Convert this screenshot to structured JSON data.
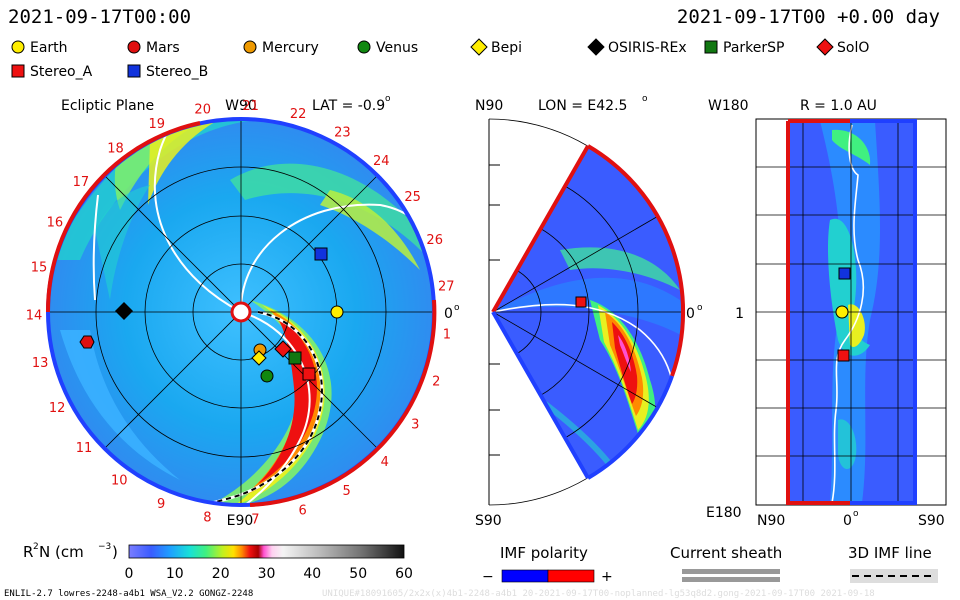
{
  "header": {
    "left_timestamp": "2021-09-17T00:00",
    "right_timestamp": "2021-09-17T00 +0.00 day"
  },
  "legend": [
    {
      "label": "Earth",
      "marker": "circle",
      "color": "#ffee00"
    },
    {
      "label": "Mars",
      "marker": "circle",
      "color": "#e01010"
    },
    {
      "label": "Mercury",
      "marker": "circle",
      "color": "#ee9900"
    },
    {
      "label": "Venus",
      "marker": "circle",
      "color": "#118811"
    },
    {
      "label": "Bepi",
      "marker": "diamond",
      "color": "#ffee00"
    },
    {
      "label": "OSIRIS-REx",
      "marker": "diamond",
      "color": "#000000"
    },
    {
      "label": "ParkerSP",
      "marker": "square",
      "color": "#117711"
    },
    {
      "label": "SolO",
      "marker": "diamond",
      "color": "#ee1111"
    },
    {
      "label": "Stereo_A",
      "marker": "square",
      "color": "#ee1111"
    },
    {
      "label": "Stereo_B",
      "marker": "square",
      "color": "#1133dd"
    }
  ],
  "panels": {
    "ecliptic": {
      "title": "Ecliptic Plane",
      "top_label": "W90",
      "bottom_label": "E90",
      "right_label": "0",
      "lat_label": "LAT = -0.9",
      "carrington_numbers": [
        "1",
        "2",
        "3",
        "4",
        "5",
        "6",
        "7",
        "8",
        "9",
        "10",
        "11",
        "12",
        "13",
        "14",
        "15",
        "16",
        "17",
        "18",
        "19",
        "20",
        "21",
        "22",
        "23",
        "24",
        "25",
        "26",
        "27"
      ]
    },
    "meridional": {
      "top_left_label": "N90",
      "bottom_left_label": "S90",
      "right_label": "0",
      "lon_label": "LON = E42.5"
    },
    "radial": {
      "top_left_label": "W180",
      "bottom_left_label": "E180",
      "middle_left_label": "1",
      "r_label": "R = 1.0 AU",
      "x_labels": [
        "N90",
        "0",
        "S90"
      ]
    }
  },
  "colorbar": {
    "label": "R",
    "label_rest": " N (cm",
    "label_end": ")",
    "ticks": [
      "0",
      "10",
      "20",
      "30",
      "40",
      "50",
      "60"
    ]
  },
  "imf": {
    "title": "IMF polarity",
    "minus": "−",
    "plus": "+",
    "sheath_title": "Current sheath",
    "line_title": "3D IMF line"
  },
  "footer": {
    "left": "ENLIL-2.7 lowres-2248-a4b1 WSA_V2.2 GONGZ-2248",
    "right": "UNIQUE#18091605/2x2x(x)4b1-2248-a4b1 20-2021-09-17T00-noplanned-lg53q8d2.gong-2021-09-17T00  2021-09-18"
  },
  "chart_data": [
    {
      "type": "heatmap",
      "title": "Ecliptic Plane",
      "quantity": "R^2 N (cm^-3)",
      "range": [
        0,
        60
      ],
      "bodies_shown": [
        "Earth",
        "Mars",
        "Mercury",
        "Venus",
        "Bepi",
        "OSIRIS-REx",
        "ParkerSP",
        "SolO",
        "Stereo_A",
        "Stereo_B"
      ]
    },
    {
      "type": "heatmap",
      "title": "LON = E42.5",
      "quantity": "R^2 N (cm^-3)",
      "range": [
        0,
        60
      ],
      "bodies_shown": [
        "Stereo_A"
      ]
    },
    {
      "type": "heatmap",
      "title": "R = 1.0 AU",
      "quantity": "R^2 N (cm^-3)",
      "range": [
        0,
        60
      ],
      "bodies_shown": [
        "Stereo_B",
        "Earth",
        "SolO"
      ]
    }
  ]
}
